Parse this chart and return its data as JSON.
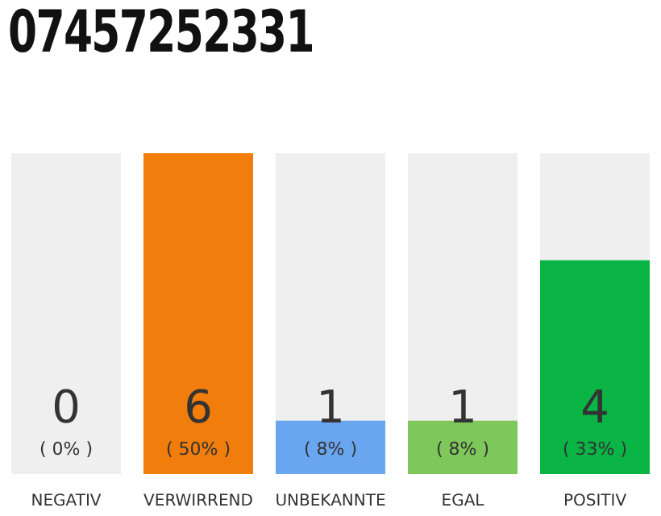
{
  "chart_data": {
    "type": "bar",
    "title": "07457252331",
    "categories": [
      "NEGATIV",
      "VERWIRREND",
      "UNBEKANNTE",
      "EGAL",
      "POSITIV"
    ],
    "values": [
      0,
      6,
      1,
      1,
      4
    ],
    "colors": [
      "#999999",
      "#f07d0c",
      "#6aa5ef",
      "#7ec85b",
      "#0ab445"
    ],
    "value_labels": [
      "0\n( 0% )",
      "6\n( 50% )",
      "1\n( 8% )",
      "1\n( 8% )",
      "4\n( 33% )"
    ],
    "grid": false,
    "legend": false
  }
}
